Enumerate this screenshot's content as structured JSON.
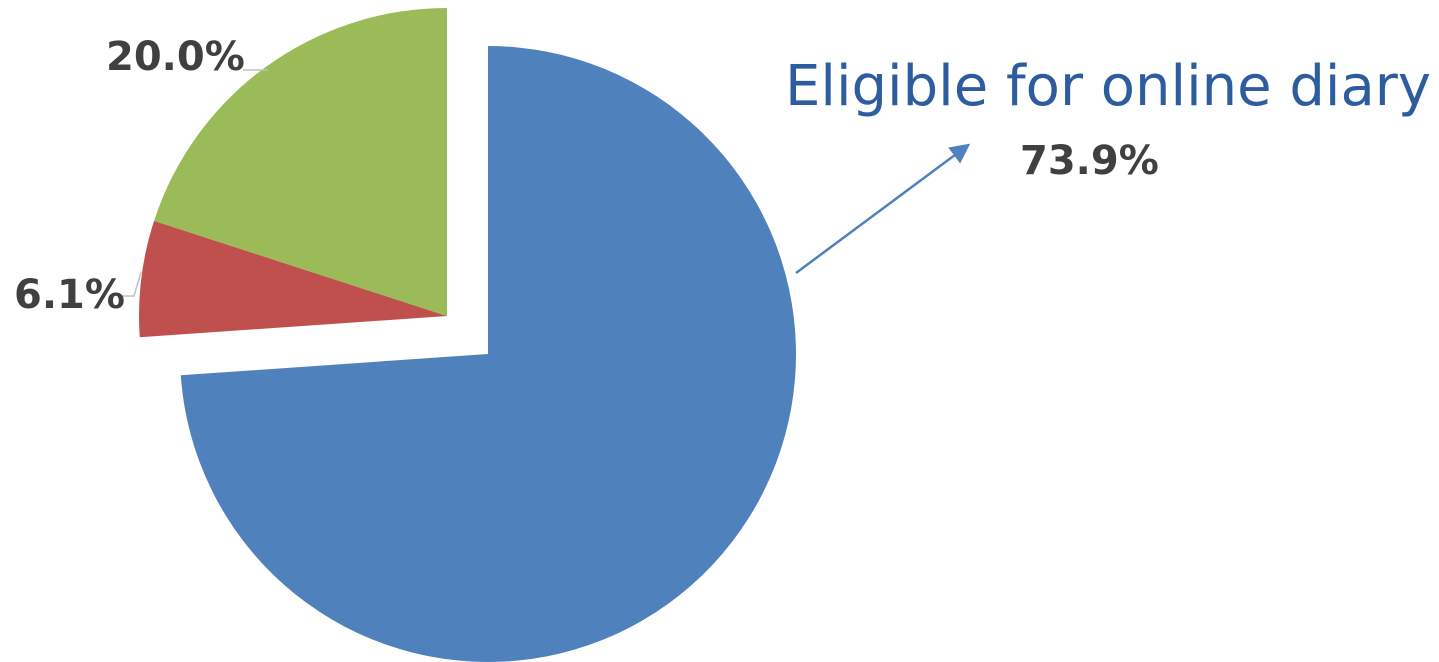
{
  "chart_data": {
    "type": "pie",
    "slices": [
      {
        "value": 73.9,
        "label": "73.9%",
        "color": "#4F81BD",
        "exploded": true
      },
      {
        "value": 6.1,
        "label": "6.1%",
        "color": "#C0504D",
        "exploded": false
      },
      {
        "value": 20.0,
        "label": "20.0%",
        "color": "#9BBB59",
        "exploded": false
      }
    ],
    "annotation": {
      "text": "Eligible for online diary",
      "color": "#2E5D9F",
      "points_to": "73.9%"
    },
    "legend": "none"
  }
}
